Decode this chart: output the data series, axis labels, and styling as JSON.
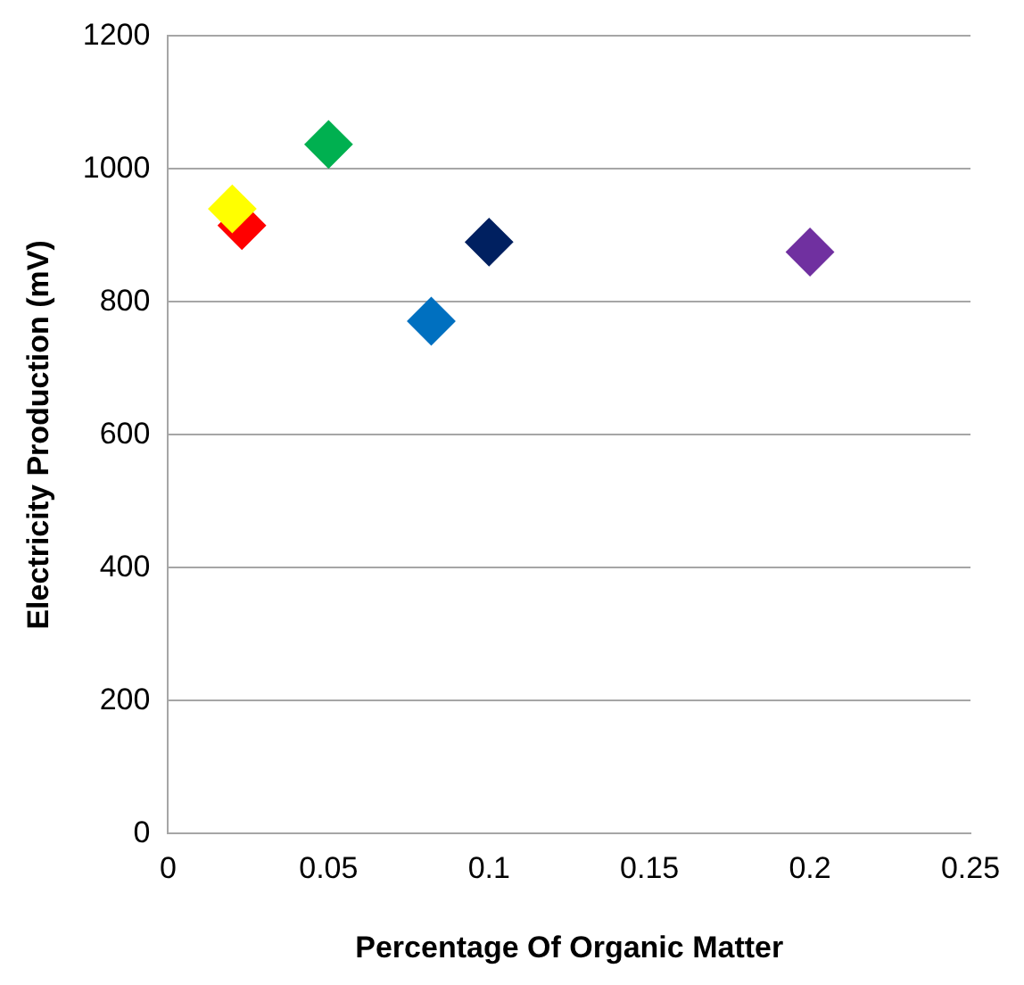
{
  "chart_data": {
    "type": "scatter",
    "xlabel": "Percentage Of Organic Matter",
    "ylabel": "Electricity Production (mV)",
    "series": [
      {
        "color": "#ffff00",
        "x": [
          0.02
        ],
        "values": [
          940
        ]
      },
      {
        "color": "#ff0000",
        "x": [
          0.023
        ],
        "values": [
          915
        ]
      },
      {
        "color": "#00b050",
        "x": [
          0.05
        ],
        "values": [
          1037
        ]
      },
      {
        "color": "#0070c0",
        "x": [
          0.082
        ],
        "values": [
          771
        ]
      },
      {
        "color": "#002060",
        "x": [
          0.1
        ],
        "values": [
          890
        ]
      },
      {
        "color": "#7030a0",
        "x": [
          0.2
        ],
        "values": [
          875
        ]
      }
    ],
    "xlim": [
      0,
      0.25
    ],
    "xticks": [
      0,
      0.05,
      0.1,
      0.15,
      0.2,
      0.25
    ],
    "ylim": [
      0,
      1200
    ],
    "yticks": [
      0,
      200,
      400,
      600,
      800,
      1000,
      1200
    ],
    "grid": "y",
    "legend": false,
    "marker": "diamond"
  }
}
